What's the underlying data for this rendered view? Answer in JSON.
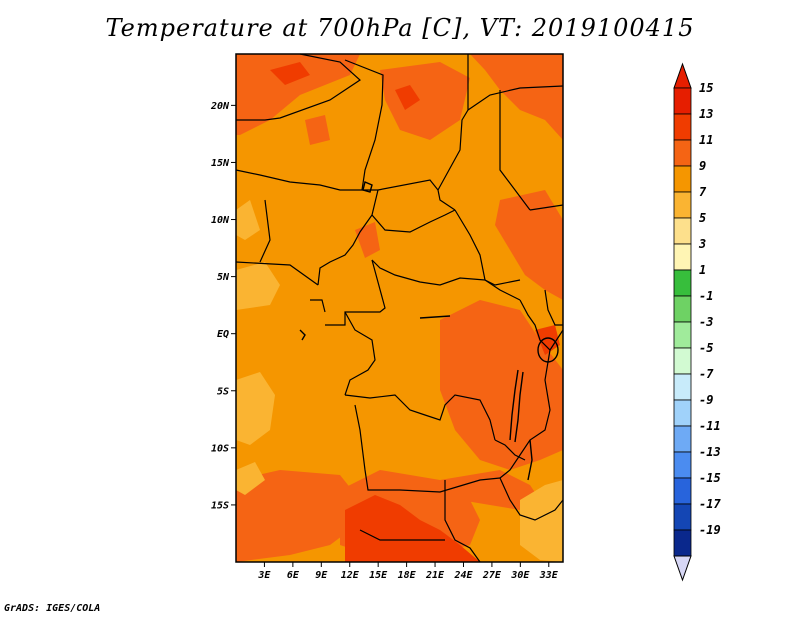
{
  "title": "Temperature at 700hPa [C], VT: 2019100415",
  "credit": "GrADS: IGES/COLA",
  "map": {
    "lat_ticks": [
      {
        "label": "20N",
        "lat": 20
      },
      {
        "label": "15N",
        "lat": 15
      },
      {
        "label": "10N",
        "lat": 10
      },
      {
        "label": "5N",
        "lat": 5
      },
      {
        "label": "EQ",
        "lat": 0
      },
      {
        "label": "5S",
        "lat": -5
      },
      {
        "label": "10S",
        "lat": -10
      },
      {
        "label": "15S",
        "lat": -15
      }
    ],
    "lon_ticks": [
      {
        "label": "3E",
        "lon": 3
      },
      {
        "label": "6E",
        "lon": 6
      },
      {
        "label": "9E",
        "lon": 9
      },
      {
        "label": "12E",
        "lon": 12
      },
      {
        "label": "15E",
        "lon": 15
      },
      {
        "label": "18E",
        "lon": 18
      },
      {
        "label": "21E",
        "lon": 21
      },
      {
        "label": "24E",
        "lon": 24
      },
      {
        "label": "27E",
        "lon": 27
      },
      {
        "label": "30E",
        "lon": 30
      },
      {
        "label": "33E",
        "lon": 33
      }
    ],
    "lon_range": [
      0,
      34.5
    ],
    "lat_range": [
      -20,
      24.5
    ]
  },
  "colorbar": {
    "levels": [
      {
        "label": "15",
        "color": "#e61e00"
      },
      {
        "label": "13",
        "color": "#f03c00"
      },
      {
        "label": "11",
        "color": "#f56414"
      },
      {
        "label": "9",
        "color": "#f59600"
      },
      {
        "label": "7",
        "color": "#fab432"
      },
      {
        "label": "5",
        "color": "#fde08c"
      },
      {
        "label": "3",
        "color": "#fff5b4"
      },
      {
        "label": "1",
        "color": "#37be3c"
      },
      {
        "label": "-1",
        "color": "#6ed264"
      },
      {
        "label": "-3",
        "color": "#a0eb9b"
      },
      {
        "label": "-5",
        "color": "#d2fad2"
      },
      {
        "label": "-7",
        "color": "#c8ebfa"
      },
      {
        "label": "-9",
        "color": "#a0d2fa"
      },
      {
        "label": "-11",
        "color": "#6eaaf5"
      },
      {
        "label": "-13",
        "color": "#4b8cf0"
      },
      {
        "label": "-15",
        "color": "#2864dc"
      },
      {
        "label": "-17",
        "color": "#1446b4"
      },
      {
        "label": "-19",
        "color": "#0a288c"
      }
    ],
    "top_color": "#e61e00",
    "bottom_tri_color": "#d7d7f5"
  }
}
